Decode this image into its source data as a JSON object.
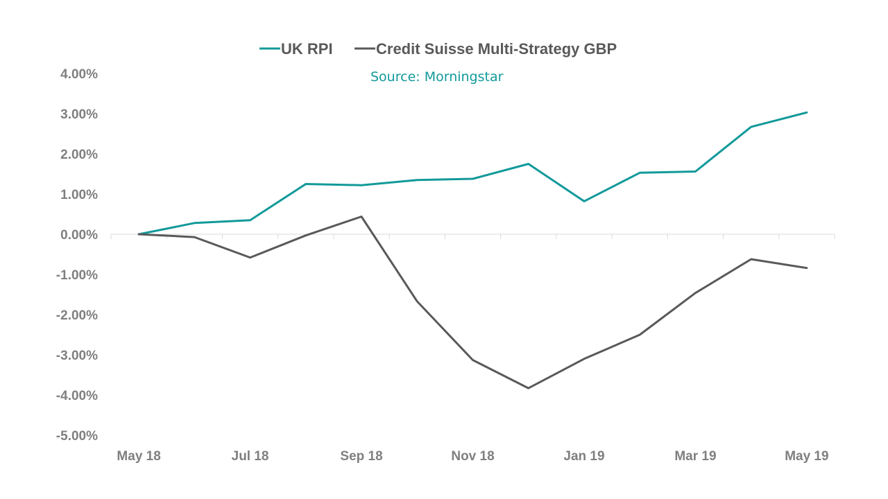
{
  "chart_data": {
    "type": "line",
    "title": "",
    "xlabel": "",
    "ylabel": "",
    "source": "Source: Morningstar",
    "x": [
      "May 18",
      "Jun 18",
      "Jul 18",
      "Aug 18",
      "Sep 18",
      "Oct 18",
      "Nov 18",
      "Dec 18",
      "Jan 19",
      "Feb 19",
      "Mar 19",
      "Apr 19",
      "May 19"
    ],
    "x_tick_labels": [
      "May 18",
      "Jul 18",
      "Sep 18",
      "Nov 18",
      "Jan 19",
      "Mar 19",
      "May 19"
    ],
    "y_tick_labels": [
      "4.00%",
      "3.00%",
      "2.00%",
      "1.00%",
      "0.00%",
      "-1.00%",
      "-2.00%",
      "-3.00%",
      "-4.00%",
      "-5.00%"
    ],
    "ylim": [
      -5,
      4
    ],
    "y_unit": "%",
    "grid": false,
    "legend_position": "top",
    "series": [
      {
        "name": "UK RPI",
        "color": "#12999a",
        "values": [
          0.0,
          0.28,
          0.35,
          1.25,
          1.22,
          1.35,
          1.38,
          1.75,
          0.82,
          1.53,
          1.56,
          2.67,
          3.03
        ]
      },
      {
        "name": "Credit Suisse Multi-Strategy GBP",
        "color": "#595959",
        "values": [
          0.0,
          -0.07,
          -0.58,
          -0.03,
          0.44,
          -1.67,
          -3.13,
          -3.83,
          -3.1,
          -2.5,
          -1.46,
          -0.62,
          -0.84
        ]
      }
    ]
  },
  "colors": {
    "axis_line": "#d9d9d9",
    "tick_text": "#7f7f7f",
    "legend_text": "#595959",
    "source_text": "#12999a"
  }
}
